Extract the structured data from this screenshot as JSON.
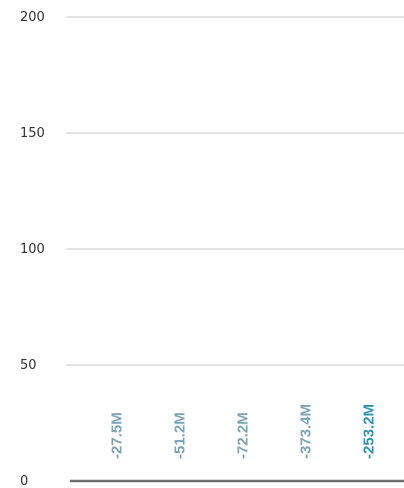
{
  "chart_data": {
    "type": "bar",
    "title": "",
    "xlabel": "",
    "ylabel": "",
    "ylim": [
      0,
      200
    ],
    "yticks": [
      0,
      50,
      100,
      150,
      200
    ],
    "ytick_labels": [
      "0",
      "50",
      "100",
      "150",
      "200"
    ],
    "grid": true,
    "legend": "none",
    "categories": [
      "",
      "",
      "",
      "",
      ""
    ],
    "values": [
      -27.5,
      -51.2,
      -72.2,
      -373.4,
      -253.2
    ],
    "data_labels": [
      "-27.5M",
      "-51.2M",
      "-72.2M",
      "-373.4M",
      "-253.2M"
    ],
    "label_colors": [
      "#7aa3b8",
      "#7aa3b8",
      "#7aa3b8",
      "#7aa3b8",
      "#2a93b0"
    ],
    "gridline_color": "#c8c8c8",
    "axis_color": "#6e6e6e"
  }
}
